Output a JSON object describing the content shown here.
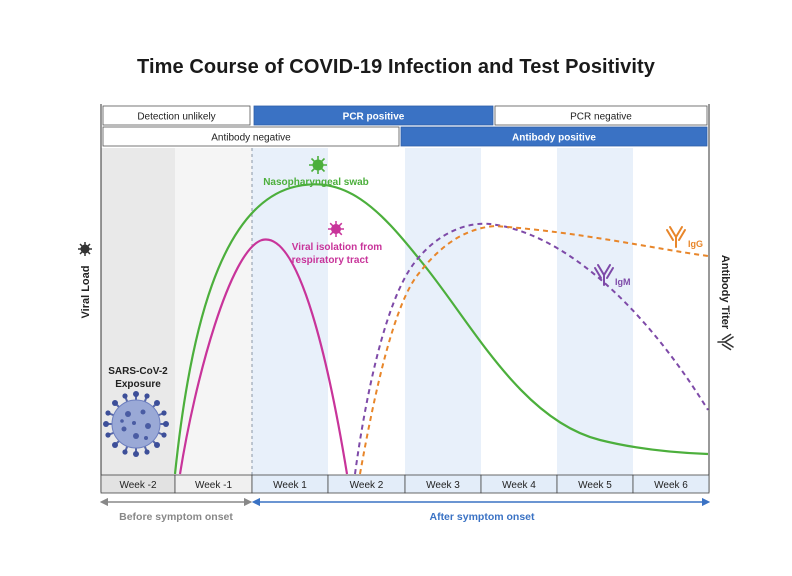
{
  "title": "Time Course of COVID-19 Infection and Test Positivity",
  "pcr_row": {
    "unlikely": "Detection unlikely",
    "positive": "PCR positive",
    "negative": "PCR negative"
  },
  "antibody_row": {
    "negative": "Antibody negative",
    "positive": "Antibody positive"
  },
  "weeks": [
    "Week -2",
    "Week -1",
    "Week 1",
    "Week 2",
    "Week 3",
    "Week 4",
    "Week 5",
    "Week 6"
  ],
  "axis": {
    "left_label": "Viral Load",
    "right_label": "Antibody Titer",
    "before": "Before symptom onset",
    "after": "After symptom onset"
  },
  "annotations": {
    "swab": "Nasopharyngeal swab",
    "isolation_1": "Viral isolation from",
    "isolation_2": "respiratory tract",
    "exposure_1": "SARS-CoV-2",
    "exposure_2": "Exposure",
    "igg": "IgG",
    "igm": "IgM"
  },
  "colors": {
    "swab": "#4caf3c",
    "isolation": "#c8349a",
    "igg": "#e8862a",
    "igm": "#7e4aa8",
    "accent_blue": "#3a72c4",
    "before_gray": "#888888"
  }
}
